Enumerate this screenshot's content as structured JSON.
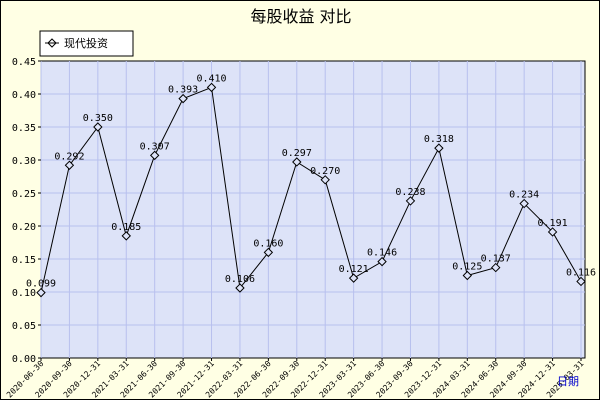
{
  "chart_data": {
    "type": "line",
    "title": "每股收益  对比",
    "x": [
      "2020-06-30",
      "2020-09-30",
      "2020-12-31",
      "2021-03-31",
      "2021-06-30",
      "2021-09-30",
      "2021-12-31",
      "2022-03-31",
      "2022-06-30",
      "2022-09-30",
      "2022-12-31",
      "2023-03-31",
      "2023-06-30",
      "2023-09-30",
      "2023-12-31",
      "2024-03-31",
      "2024-06-30",
      "2024-09-30",
      "2024-12-31",
      "2025-03-31"
    ],
    "series": [
      {
        "name": "现代投资",
        "values": [
          0.099,
          0.292,
          0.35,
          0.185,
          0.307,
          0.393,
          0.41,
          0.106,
          0.16,
          0.297,
          0.27,
          0.121,
          0.146,
          0.238,
          0.318,
          0.125,
          0.137,
          0.234,
          0.191,
          0.116
        ],
        "labels": [
          "0.099",
          "0.292",
          "0.350",
          "0.185",
          "0.307",
          "0.393",
          "0.410",
          "0.106",
          "0.160",
          "0.297",
          "0.270",
          "0.121",
          "0.146",
          "0.238",
          "0.318",
          "0.125",
          "0.137",
          "0.234",
          "0.191",
          "0.116"
        ]
      }
    ],
    "ylim": [
      0,
      0.45
    ],
    "yticks": [
      "0.00",
      "0.05",
      "0.10",
      "0.15",
      "0.20",
      "0.25",
      "0.30",
      "0.35",
      "0.40",
      "0.45"
    ],
    "xlabel_unit": "日期",
    "grid": true,
    "legend_position": "top-left",
    "colors": {
      "background": "#ffffe4",
      "plot_bg": "#dde3f8",
      "grid": "#b8c0ee",
      "line": "#000000"
    }
  }
}
